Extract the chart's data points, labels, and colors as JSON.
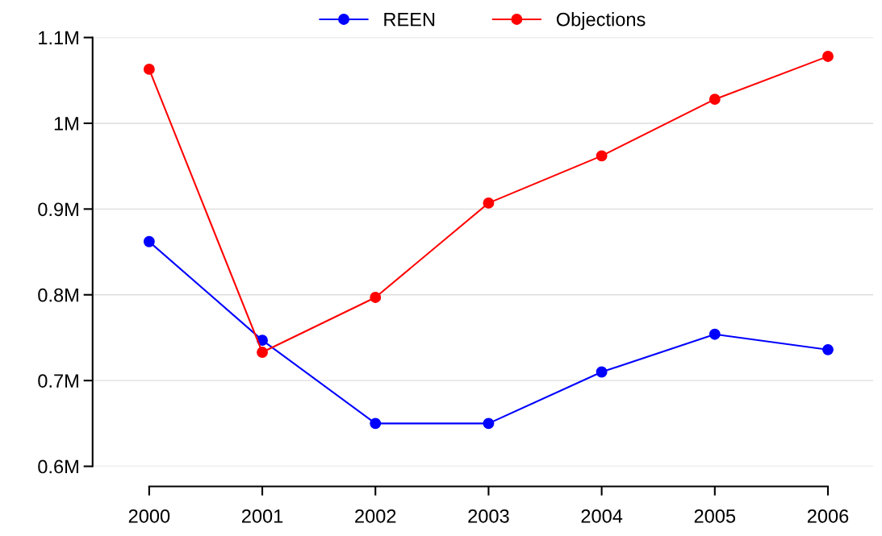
{
  "chart_data": {
    "type": "line",
    "categories": [
      "2000",
      "2001",
      "2002",
      "2003",
      "2004",
      "2005",
      "2006"
    ],
    "series": [
      {
        "name": "REEN",
        "color": "#0000ff",
        "values": [
          0.862,
          0.747,
          0.65,
          0.65,
          0.71,
          0.754,
          0.736
        ]
      },
      {
        "name": "Objections",
        "color": "#ff0000",
        "values": [
          1.063,
          0.733,
          0.797,
          0.907,
          0.962,
          1.028,
          1.078
        ]
      }
    ],
    "ylim": [
      0.6,
      1.1
    ],
    "yticks": [
      {
        "value": 0.6,
        "label": "0.6M"
      },
      {
        "value": 0.7,
        "label": "0.7M"
      },
      {
        "value": 0.8,
        "label": "0.8M"
      },
      {
        "value": 0.9,
        "label": "0.9M"
      },
      {
        "value": 1.0,
        "label": "1M"
      },
      {
        "value": 1.1,
        "label": "1.1M"
      }
    ],
    "grid": "y",
    "legend": "top",
    "marker": "circle",
    "line_style": "solid"
  }
}
